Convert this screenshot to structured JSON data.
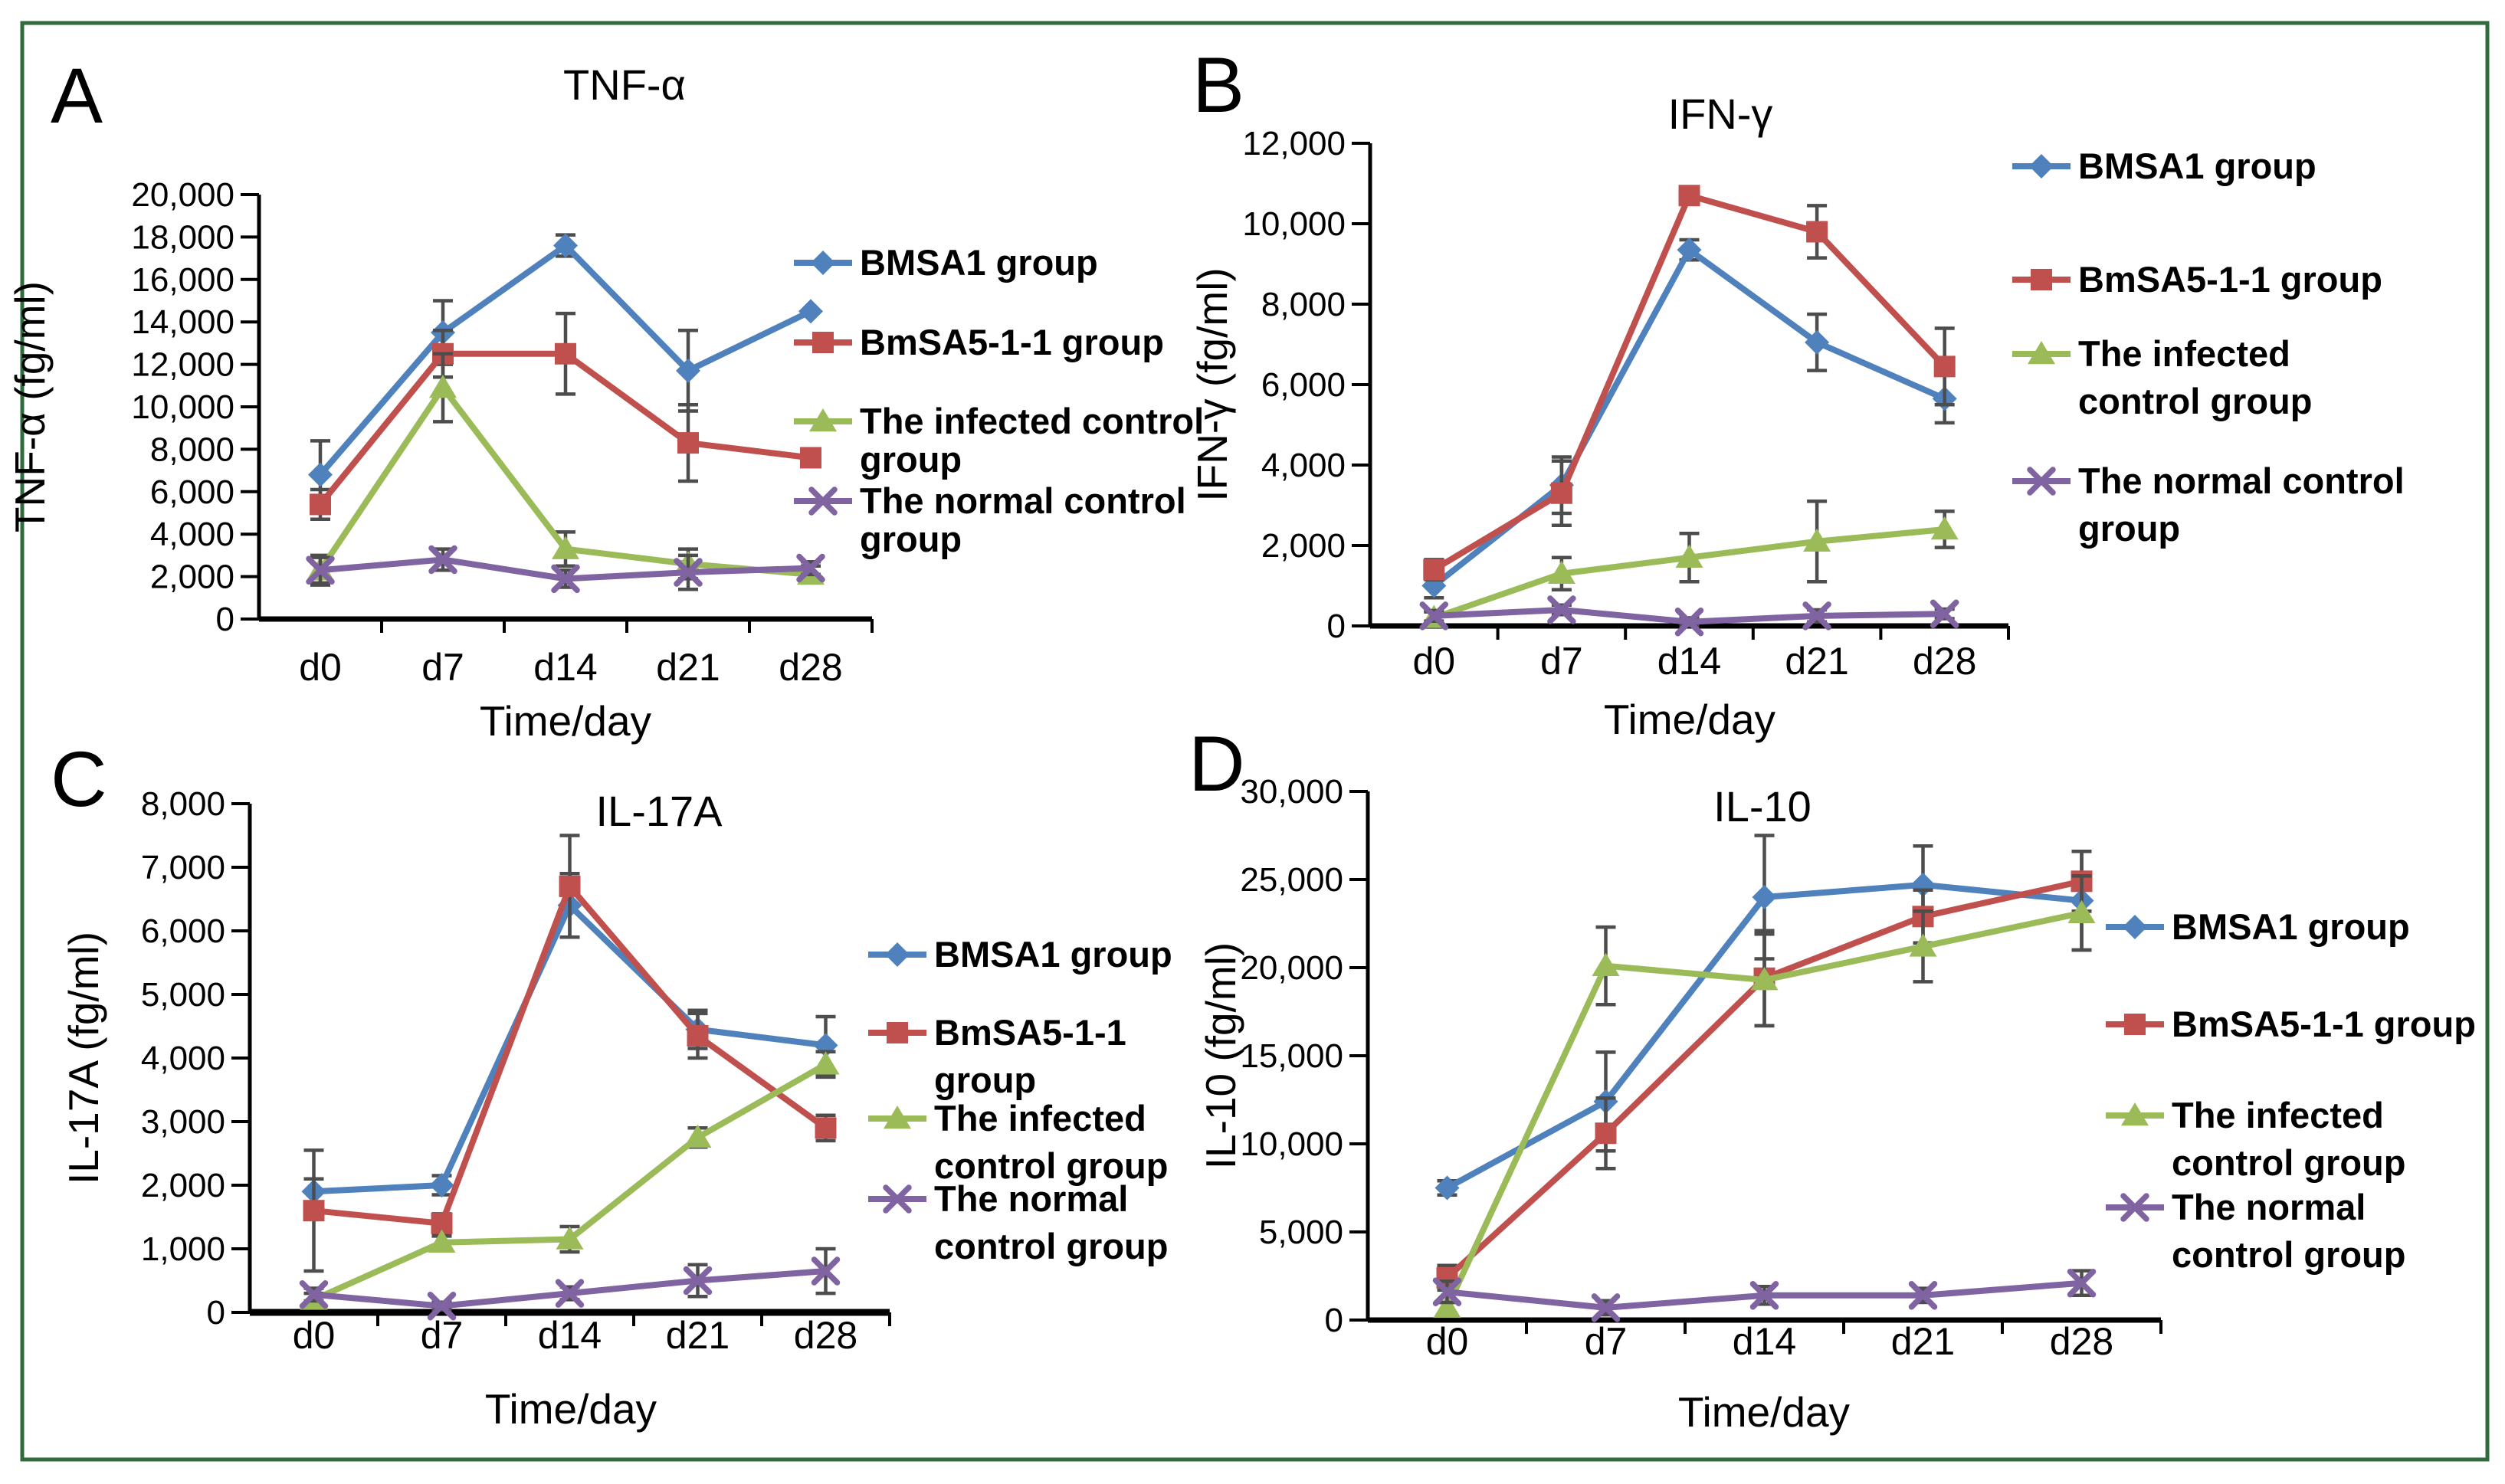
{
  "figure": {
    "border_color": "#2F6B3C",
    "background": "#ffffff",
    "error_bar_color": "#4D4D4D",
    "panel_letters": [
      "A",
      "B",
      "C",
      "D"
    ]
  },
  "chart_data": [
    {
      "panel": "A",
      "type": "line",
      "title": "TNF-α",
      "xlabel": "Time/day",
      "ylabel": "TNF-α (fg/ml)",
      "ylim": [
        0,
        20000
      ],
      "ytick_step": 2000,
      "grid": false,
      "legend_position": "right",
      "categories": [
        "d0",
        "d7",
        "d14",
        "d21",
        "d28"
      ],
      "series": [
        {
          "name": "BMSA1 group",
          "legend_lines": [
            "BMSA1 group"
          ],
          "color": "#4F81BD",
          "marker": "diamond",
          "values": [
            6800,
            13500,
            17600,
            11700,
            14500
          ],
          "errors": [
            1600,
            1500,
            500,
            1900,
            0
          ]
        },
        {
          "name": "BmSA5-1-1 group",
          "legend_lines": [
            "BmSA5-1-1 group"
          ],
          "color": "#C0504D",
          "marker": "square",
          "values": [
            5400,
            12500,
            12500,
            8300,
            7600
          ],
          "errors": [
            700,
            1100,
            1900,
            1800,
            300
          ]
        },
        {
          "name": "The infected control group",
          "legend_lines": [
            "The infected control",
            "group"
          ],
          "color": "#9BBB59",
          "marker": "triangle",
          "values": [
            2300,
            10900,
            3300,
            2600,
            2100
          ],
          "errors": [
            700,
            1600,
            800,
            700,
            400
          ]
        },
        {
          "name": "The normal control group",
          "legend_lines": [
            "The normal control",
            "group"
          ],
          "color": "#8064A2",
          "marker": "x",
          "values": [
            2300,
            2800,
            1900,
            2200,
            2400
          ],
          "errors": [
            600,
            500,
            400,
            800,
            300
          ]
        }
      ]
    },
    {
      "panel": "B",
      "type": "line",
      "title": "IFN-γ",
      "xlabel": "Time/day",
      "ylabel": "IFN-γ (fg/ml)",
      "ylim": [
        0,
        12000
      ],
      "ytick_step": 2000,
      "grid": false,
      "legend_position": "right",
      "categories": [
        "d0",
        "d7",
        "d14",
        "d21",
        "d28"
      ],
      "series": [
        {
          "name": "BMSA1 group",
          "legend_lines": [
            "BMSA1 group"
          ],
          "color": "#4F81BD",
          "marker": "diamond",
          "values": [
            1000,
            3500,
            9350,
            7050,
            5650
          ],
          "errors": [
            300,
            700,
            250,
            700,
            600
          ]
        },
        {
          "name": "BmSA5-1-1 group",
          "legend_lines": [
            "BmSA5-1-1 group"
          ],
          "color": "#C0504D",
          "marker": "square",
          "values": [
            1400,
            3300,
            10700,
            9800,
            6450
          ],
          "errors": [
            250,
            800,
            150,
            650,
            950
          ]
        },
        {
          "name": "The infected control group",
          "legend_lines": [
            "The infected",
            "control group"
          ],
          "color": "#9BBB59",
          "marker": "triangle",
          "values": [
            200,
            1300,
            1700,
            2100,
            2400
          ],
          "errors": [
            150,
            400,
            600,
            1000,
            450
          ]
        },
        {
          "name": "The normal control group",
          "legend_lines": [
            "The normal control",
            "group"
          ],
          "color": "#8064A2",
          "marker": "x",
          "values": [
            250,
            400,
            100,
            250,
            300
          ],
          "errors": [
            130,
            120,
            100,
            150,
            120
          ]
        }
      ]
    },
    {
      "panel": "C",
      "type": "line",
      "title": "IL-17A",
      "xlabel": "Time/day",
      "ylabel": "IL-17A (fg/ml)",
      "ylim": [
        0,
        8000
      ],
      "ytick_step": 1000,
      "grid": false,
      "legend_position": "right",
      "categories": [
        "d0",
        "d7",
        "d14",
        "d21",
        "d28"
      ],
      "series": [
        {
          "name": "BMSA1 group",
          "legend_lines": [
            "BMSA1 group"
          ],
          "color": "#4F81BD",
          "marker": "diamond",
          "values": [
            1900,
            2000,
            6400,
            4450,
            4200
          ],
          "errors": [
            200,
            150,
            500,
            300,
            450
          ]
        },
        {
          "name": "BmSA5-1-1 group",
          "legend_lines": [
            "BmSA5-1-1",
            "group"
          ],
          "color": "#C0504D",
          "marker": "square",
          "values": [
            1600,
            1400,
            6700,
            4350,
            2900
          ],
          "errors": [
            950,
            150,
            800,
            350,
            200
          ]
        },
        {
          "name": "The infected control group",
          "legend_lines": [
            "The infected",
            "control group"
          ],
          "color": "#9BBB59",
          "marker": "triangle",
          "values": [
            200,
            1100,
            1150,
            2750,
            3900
          ],
          "errors": [
            100,
            100,
            200,
            150,
            200
          ]
        },
        {
          "name": "The normal control group",
          "legend_lines": [
            "The normal",
            "control group"
          ],
          "color": "#8064A2",
          "marker": "x",
          "values": [
            280,
            100,
            300,
            500,
            650
          ],
          "errors": [
            100,
            60,
            100,
            250,
            350
          ]
        }
      ]
    },
    {
      "panel": "D",
      "type": "line",
      "title": "IL-10",
      "xlabel": "Time/day",
      "ylabel": "IL-10 (fg/ml)",
      "ylim": [
        0,
        30000
      ],
      "ytick_step": 5000,
      "grid": false,
      "legend_position": "right",
      "categories": [
        "d0",
        "d7",
        "d14",
        "d21",
        "d28"
      ],
      "series": [
        {
          "name": "BMSA1 group",
          "legend_lines": [
            "BMSA1 group"
          ],
          "color": "#4F81BD",
          "marker": "diamond",
          "values": [
            7500,
            12400,
            24000,
            24700,
            23800
          ],
          "errors": [
            400,
            2800,
            3500,
            2200,
            2800
          ]
        },
        {
          "name": "BmSA5-1-1 group",
          "legend_lines": [
            "BmSA5-1-1 group"
          ],
          "color": "#C0504D",
          "marker": "square",
          "values": [
            2400,
            10600,
            19400,
            22900,
            24900
          ],
          "errors": [
            700,
            2000,
            2700,
            1500,
            1700
          ]
        },
        {
          "name": "The infected control group",
          "legend_lines": [
            "The infected",
            "control group"
          ],
          "color": "#9BBB59",
          "marker": "triangle",
          "values": [
            700,
            20100,
            19300,
            21200,
            23100
          ],
          "errors": [
            300,
            2200,
            2600,
            2000,
            2100
          ]
        },
        {
          "name": "The normal control group",
          "legend_lines": [
            "The normal",
            "control group"
          ],
          "color": "#8064A2",
          "marker": "x",
          "values": [
            1600,
            700,
            1400,
            1400,
            2100
          ],
          "errors": [
            600,
            400,
            500,
            400,
            700
          ]
        }
      ]
    }
  ]
}
